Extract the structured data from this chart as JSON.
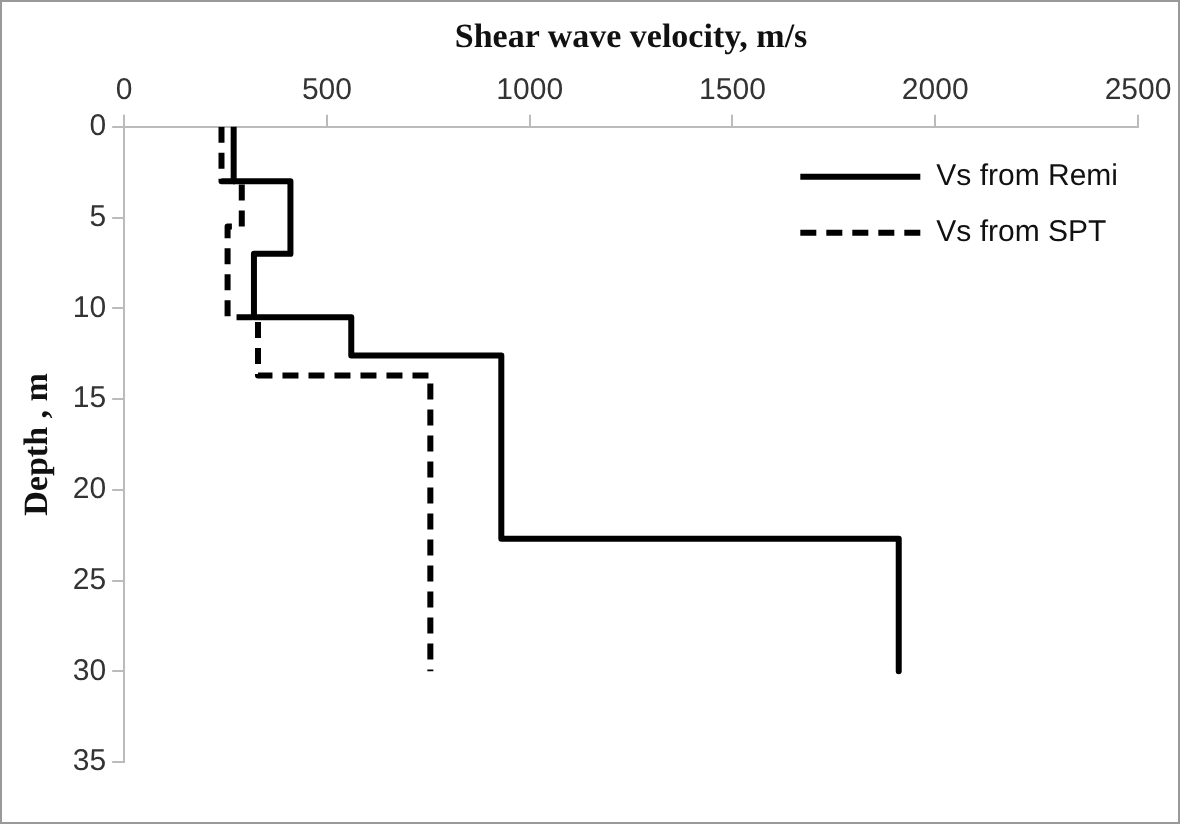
{
  "chart_data": {
    "type": "line",
    "xlabel": "Shear wave velocity, m/s",
    "ylabel": "Depth , m",
    "xlim": [
      0,
      2500
    ],
    "xticks": [
      0,
      500,
      1000,
      1500,
      2000,
      2500
    ],
    "ylim": [
      35,
      0
    ],
    "yticks": [
      0,
      5,
      10,
      15,
      20,
      25,
      30,
      35
    ],
    "grid": false,
    "legend": "top right",
    "marker": "none",
    "series": [
      {
        "name": "Vs from Remi",
        "color": "#000000",
        "line_style": "solid",
        "x": [
          270,
          270,
          410,
          410,
          320,
          320,
          560,
          560,
          930,
          930,
          1910,
          1910
        ],
        "values": [
          0,
          3,
          3,
          7,
          7,
          10.5,
          10.5,
          12.6,
          12.6,
          22.7,
          22.7,
          30
        ]
      },
      {
        "name": "Vs from SPT",
        "color": "#000000",
        "line_style": "dashed",
        "x": [
          240,
          240,
          290,
          290,
          255,
          255,
          330,
          330,
          755,
          755
        ],
        "values": [
          0,
          3,
          3,
          5.5,
          5.5,
          10.5,
          10.5,
          13.7,
          13.7,
          30
        ]
      }
    ]
  }
}
